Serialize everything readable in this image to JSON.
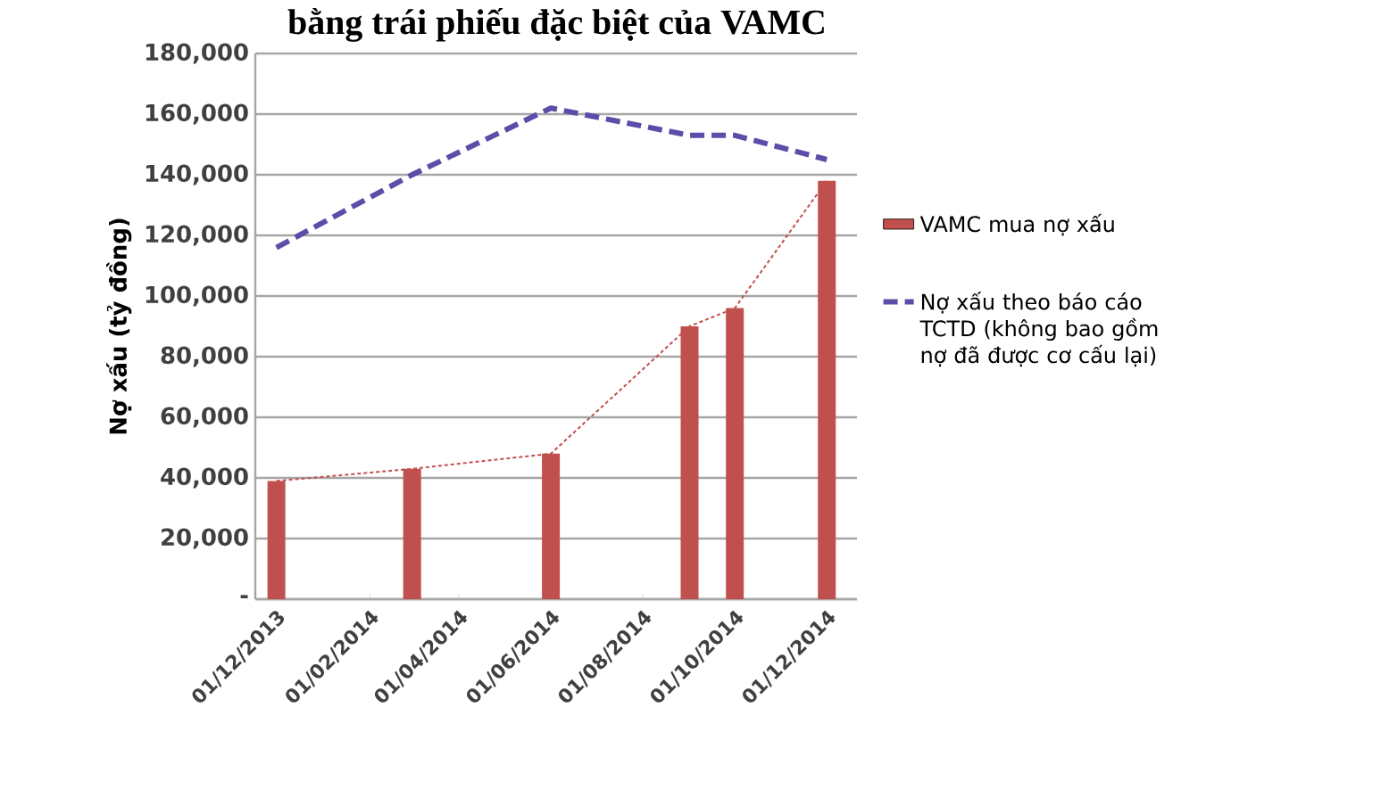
{
  "chart_data": {
    "type": "bar",
    "title": "bằng trái phiếu đặc biệt của VAMC",
    "ylabel": "Nợ xấu (tỷ đồng)",
    "x": [
      "2013-12-01",
      "2014-03-01",
      "2014-06-01",
      "2014-09-01",
      "2014-10-01",
      "2014-12-01"
    ],
    "series": [
      {
        "name": "VAMC mua nợ xấu",
        "color": "#c0504d",
        "values": [
          39000,
          43000,
          48000,
          90000,
          96000,
          138000
        ]
      },
      {
        "type": "line",
        "color": "#c0504d",
        "line_style": "dotted",
        "values": [
          39000,
          43000,
          48000,
          90000,
          96000,
          138000
        ]
      },
      {
        "name": "Nợ xấu theo báo cáo TCTD (không bao gồm nợ đã được cơ cấu lại)",
        "type": "line",
        "color": "#5b4ea8",
        "line_style": "dashed",
        "values": [
          116000,
          140000,
          162000,
          153000,
          153000,
          145000
        ]
      }
    ],
    "xlim": [
      "2013-11-17",
      "2014-12-21"
    ],
    "xticks": [
      {
        "value": "2013-12-01",
        "label": "01/12/2013"
      },
      {
        "value": "2014-02-01",
        "label": "01/02/2014"
      },
      {
        "value": "2014-04-01",
        "label": "01/04/2014"
      },
      {
        "value": "2014-06-01",
        "label": "01/06/2014"
      },
      {
        "value": "2014-08-01",
        "label": "01/08/2014"
      },
      {
        "value": "2014-10-01",
        "label": "01/10/2014"
      },
      {
        "value": "2014-12-01",
        "label": "01/12/2014"
      }
    ],
    "ylim": [
      0,
      180000
    ],
    "yticks": [
      {
        "value": 0,
        "label": "-"
      },
      {
        "value": 20000,
        "label": "20,000"
      },
      {
        "value": 40000,
        "label": "40,000"
      },
      {
        "value": 60000,
        "label": "60,000"
      },
      {
        "value": 80000,
        "label": "80,000"
      },
      {
        "value": 100000,
        "label": "100,000"
      },
      {
        "value": 120000,
        "label": "120,000"
      },
      {
        "value": 140000,
        "label": "140,000"
      },
      {
        "value": 160000,
        "label": "160,000"
      },
      {
        "value": 180000,
        "label": "180,000"
      }
    ],
    "grid": "y",
    "legend": "right"
  }
}
